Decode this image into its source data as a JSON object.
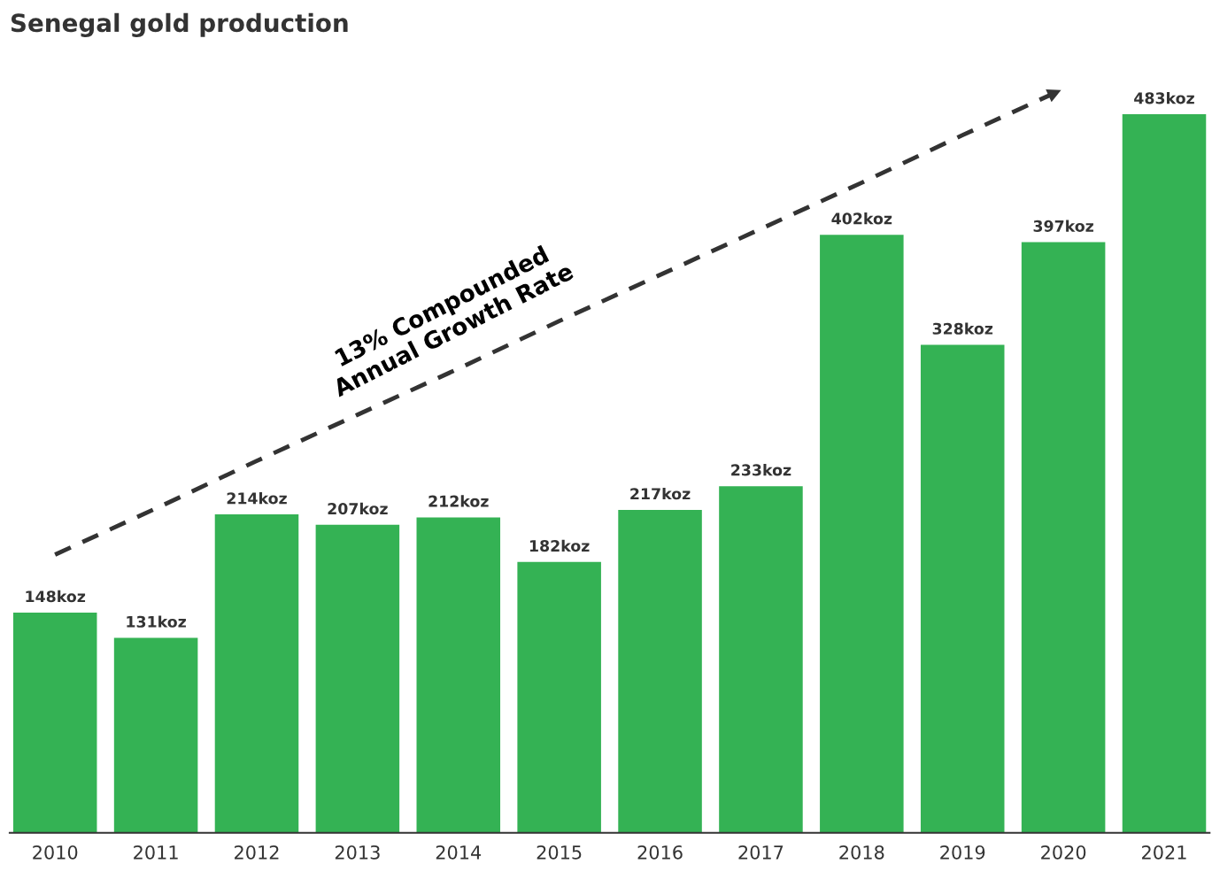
{
  "chart_data": {
    "type": "bar",
    "title": "Senegal gold production",
    "categories": [
      "2010",
      "2011",
      "2012",
      "2013",
      "2014",
      "2015",
      "2016",
      "2017",
      "2018",
      "2019",
      "2020",
      "2021"
    ],
    "series": [
      {
        "color": "#34b254",
        "values": [
          148,
          131,
          214,
          207,
          212,
          182,
          217,
          233,
          402,
          328,
          397,
          483
        ],
        "value_labels": [
          "148koz",
          "131koz",
          "214koz",
          "207koz",
          "212koz",
          "182koz",
          "217koz",
          "233koz",
          "402koz",
          "328koz",
          "397koz",
          "483koz"
        ]
      },
      {
        "type": "line",
        "color": "#333333",
        "line_style": "dashed",
        "values": [
          187,
          218,
          250,
          281,
          312,
          344,
          375,
          406,
          437,
          469,
          500,
          null
        ]
      }
    ],
    "annotations": [
      "13% Compounded\nAnnual Growth Rate"
    ],
    "grid": false,
    "legend": false
  }
}
